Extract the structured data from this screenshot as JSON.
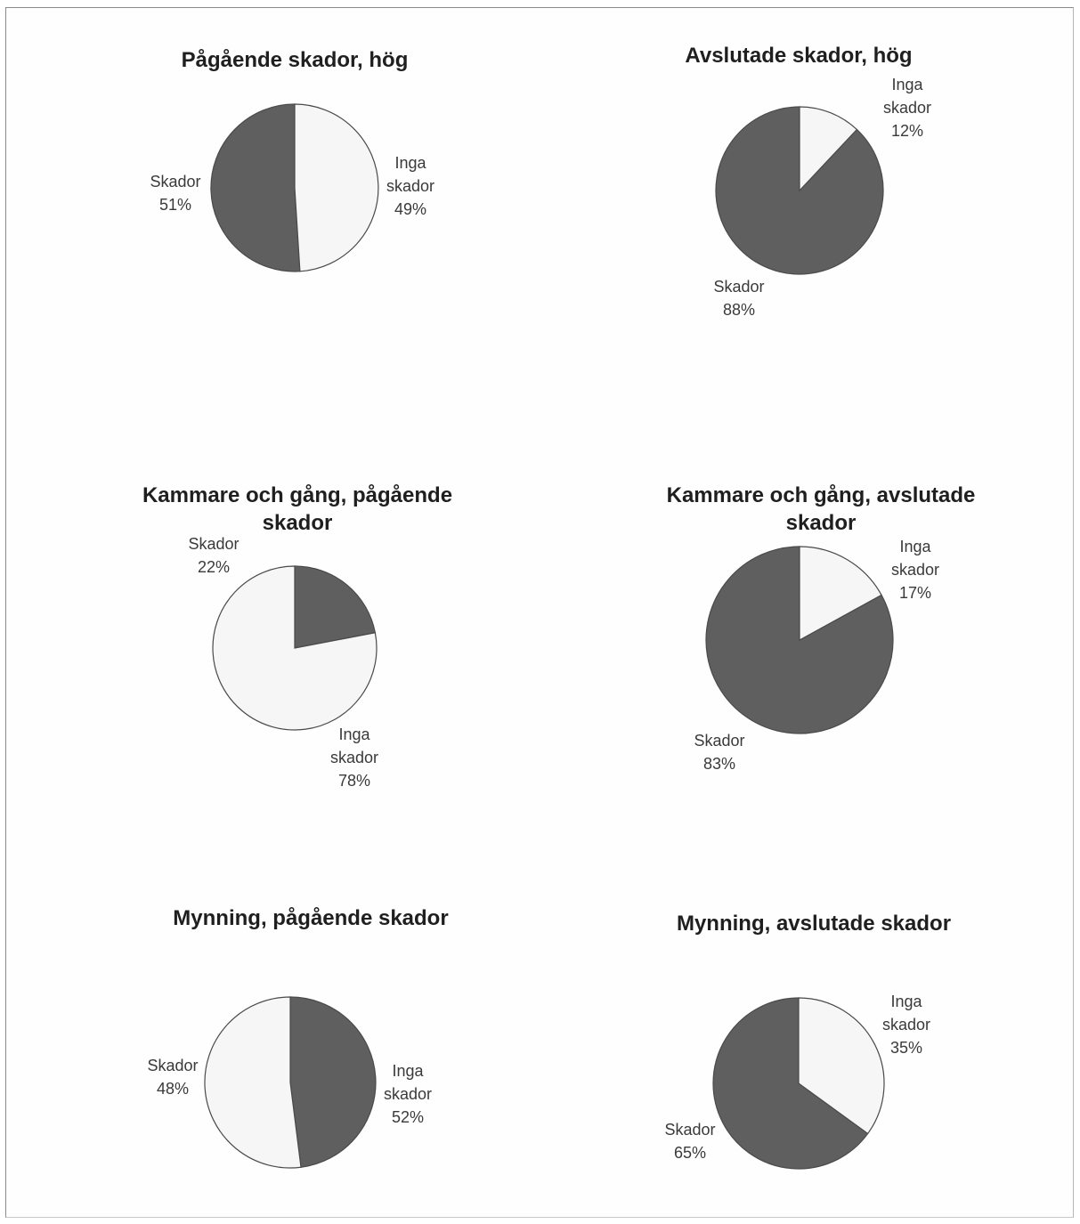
{
  "colors": {
    "skador": "#5f5f5f",
    "inga": "#f6f6f6",
    "outline": "#4a4a4a"
  },
  "chart_data": [
    {
      "type": "pie",
      "title": [
        "Pågående skador, hög"
      ],
      "slices": [
        {
          "name": "Skador",
          "value": 51,
          "label": "51%"
        },
        {
          "name": "Inga skador",
          "value": 49,
          "label": "49%"
        }
      ]
    },
    {
      "type": "pie",
      "title": [
        "Avslutade skador, hög"
      ],
      "slices": [
        {
          "name": "Skador",
          "value": 88,
          "label": "88%"
        },
        {
          "name": "Inga skador",
          "value": 12,
          "label": "12%"
        }
      ]
    },
    {
      "type": "pie",
      "title": [
        "Kammare och gång, pågående",
        "skador"
      ],
      "slices": [
        {
          "name": "Skador",
          "value": 22,
          "label": "22%"
        },
        {
          "name": "Inga skador",
          "value": 78,
          "label": "78%"
        }
      ]
    },
    {
      "type": "pie",
      "title": [
        "Kammare och gång, avslutade",
        "skador"
      ],
      "slices": [
        {
          "name": "Skador",
          "value": 83,
          "label": "83%"
        },
        {
          "name": "Inga skador",
          "value": 17,
          "label": "17%"
        }
      ]
    },
    {
      "type": "pie",
      "title": [
        "Mynning, pågående  skador"
      ],
      "slices": [
        {
          "name": "Skador",
          "value": 48,
          "label": "48%"
        },
        {
          "name": "Inga skador",
          "value": 52,
          "label": "52%"
        }
      ]
    },
    {
      "type": "pie",
      "title": [
        "Mynning, avslutade  skador"
      ],
      "slices": [
        {
          "name": "Skador",
          "value": 65,
          "label": "65%"
        },
        {
          "name": "Inga skador",
          "value": 35,
          "label": "35%"
        }
      ]
    }
  ]
}
